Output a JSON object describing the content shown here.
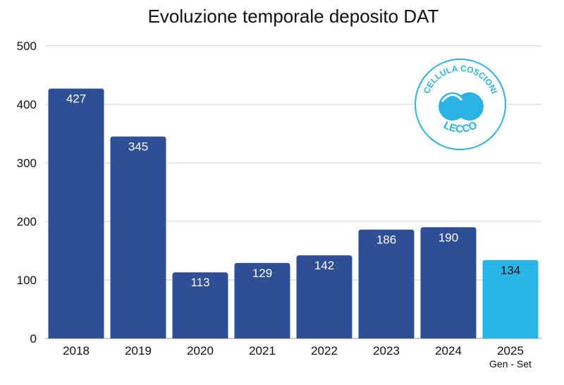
{
  "chart_data": {
    "type": "bar",
    "title": "Evoluzione temporale deposito DAT",
    "categories": [
      "2018",
      "2019",
      "2020",
      "2021",
      "2022",
      "2023",
      "2024",
      "2025"
    ],
    "category_sublabels": [
      "",
      "",
      "",
      "",
      "",
      "",
      "",
      "Gen - Set"
    ],
    "values": [
      427,
      345,
      113,
      129,
      142,
      186,
      190,
      134
    ],
    "bar_colors": [
      "#2e4f95",
      "#2e4f95",
      "#2e4f95",
      "#2e4f95",
      "#2e4f95",
      "#2e4f95",
      "#2e4f95",
      "#29b6e6"
    ],
    "label_colors": [
      "#ffffff",
      "#ffffff",
      "#ffffff",
      "#ffffff",
      "#ffffff",
      "#ffffff",
      "#ffffff",
      "#111111"
    ],
    "ylim": [
      0,
      500
    ],
    "yticks": [
      0,
      100,
      200,
      300,
      400,
      500
    ],
    "grid": true,
    "legend": "none",
    "xlabel": "",
    "ylabel": ""
  },
  "logo": {
    "top_text": "CELLULA COSCIONI",
    "bottom_text": "LECCO",
    "color": "#2bb3e3"
  }
}
